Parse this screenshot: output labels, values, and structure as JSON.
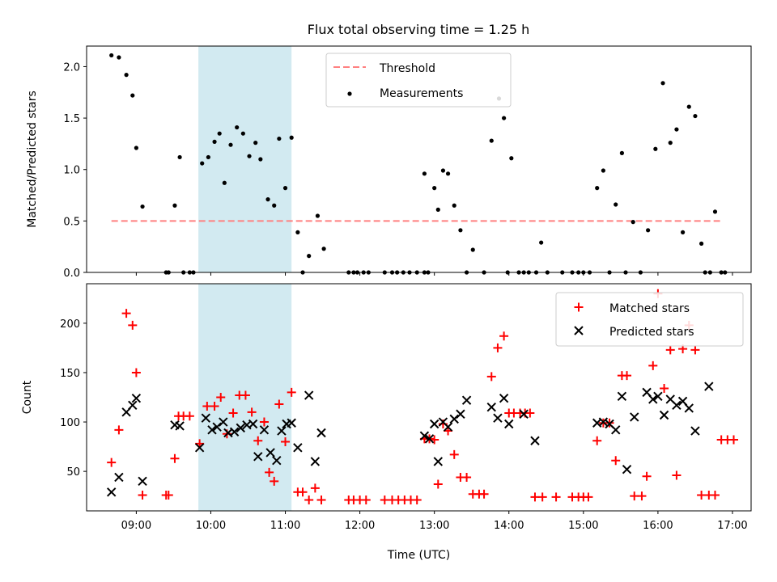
{
  "colors": {
    "threshold": "#ff8080",
    "measurements": "#000000",
    "matched": "#ff0000",
    "predicted": "#000000",
    "shade": "#add8e6"
  },
  "chart_data": [
    {
      "type": "scatter",
      "title": "Flux total observing time = 1.25 h",
      "xlabel": "",
      "ylabel": "Matched/Predicted stars",
      "xlim": [
        "08:20",
        "17:15"
      ],
      "ylim": [
        0,
        2.2
      ],
      "yticks": [
        "0.0",
        "0.5",
        "1.0",
        "1.5",
        "2.0"
      ],
      "shaded_x": [
        "09:50",
        "11:05"
      ],
      "legend": {
        "position": "top-center",
        "entries": [
          "Threshold",
          "Measurements"
        ]
      },
      "series": [
        {
          "name": "Threshold",
          "style": "dashed-line",
          "x": [
            "08:40",
            "16:50"
          ],
          "y": [
            0.5,
            0.5
          ]
        },
        {
          "name": "Measurements",
          "style": "dot",
          "points": [
            [
              "08:40",
              2.11
            ],
            [
              "08:46",
              2.09
            ],
            [
              "08:52",
              1.92
            ],
            [
              "08:57",
              1.72
            ],
            [
              "09:00",
              1.21
            ],
            [
              "09:05",
              0.64
            ],
            [
              "09:24",
              0.0
            ],
            [
              "09:26",
              0.0
            ],
            [
              "09:31",
              0.65
            ],
            [
              "09:35",
              1.12
            ],
            [
              "09:38",
              0.0
            ],
            [
              "09:43",
              0.0
            ],
            [
              "09:46",
              0.0
            ],
            [
              "09:53",
              1.06
            ],
            [
              "09:58",
              1.12
            ],
            [
              "10:03",
              1.27
            ],
            [
              "10:07",
              1.35
            ],
            [
              "10:11",
              0.87
            ],
            [
              "10:16",
              1.24
            ],
            [
              "10:21",
              1.41
            ],
            [
              "10:26",
              1.35
            ],
            [
              "10:31",
              1.13
            ],
            [
              "10:36",
              1.26
            ],
            [
              "10:40",
              1.1
            ],
            [
              "10:46",
              0.71
            ],
            [
              "10:51",
              0.65
            ],
            [
              "10:55",
              1.3
            ],
            [
              "11:00",
              0.82
            ],
            [
              "11:05",
              1.31
            ],
            [
              "11:10",
              0.39
            ],
            [
              "11:14",
              0.0
            ],
            [
              "11:19",
              0.16
            ],
            [
              "11:26",
              0.55
            ],
            [
              "11:31",
              0.23
            ],
            [
              "11:51",
              0.0
            ],
            [
              "11:55",
              0.0
            ],
            [
              "11:58",
              0.0
            ],
            [
              "12:03",
              0.0
            ],
            [
              "12:07",
              0.0
            ],
            [
              "12:20",
              0.0
            ],
            [
              "12:26",
              0.0
            ],
            [
              "12:30",
              0.0
            ],
            [
              "12:35",
              0.0
            ],
            [
              "12:40",
              0.0
            ],
            [
              "12:46",
              0.0
            ],
            [
              "12:52",
              0.0
            ],
            [
              "12:52",
              0.96
            ],
            [
              "12:55",
              0.0
            ],
            [
              "13:00",
              0.82
            ],
            [
              "13:03",
              0.61
            ],
            [
              "13:07",
              0.99
            ],
            [
              "13:11",
              0.96
            ],
            [
              "13:16",
              0.65
            ],
            [
              "13:21",
              0.41
            ],
            [
              "13:26",
              0.0
            ],
            [
              "13:31",
              0.22
            ],
            [
              "13:40",
              0.0
            ],
            [
              "13:46",
              1.28
            ],
            [
              "13:52",
              1.69
            ],
            [
              "13:56",
              1.5
            ],
            [
              "13:59",
              0.0
            ],
            [
              "14:02",
              1.11
            ],
            [
              "14:08",
              0.0
            ],
            [
              "14:12",
              0.0
            ],
            [
              "14:16",
              0.0
            ],
            [
              "14:22",
              0.0
            ],
            [
              "14:26",
              0.29
            ],
            [
              "14:31",
              0.0
            ],
            [
              "14:43",
              0.0
            ],
            [
              "14:51",
              0.0
            ],
            [
              "14:56",
              0.0
            ],
            [
              "15:00",
              0.0
            ],
            [
              "15:05",
              0.0
            ],
            [
              "15:11",
              0.82
            ],
            [
              "15:16",
              0.99
            ],
            [
              "15:21",
              0.0
            ],
            [
              "15:26",
              0.66
            ],
            [
              "15:31",
              1.16
            ],
            [
              "15:34",
              0.0
            ],
            [
              "15:40",
              0.49
            ],
            [
              "15:46",
              0.0
            ],
            [
              "15:52",
              0.41
            ],
            [
              "15:58",
              1.2
            ],
            [
              "16:04",
              1.84
            ],
            [
              "16:10",
              1.26
            ],
            [
              "16:15",
              1.39
            ],
            [
              "16:20",
              0.39
            ],
            [
              "16:25",
              1.61
            ],
            [
              "16:30",
              1.52
            ],
            [
              "16:35",
              0.28
            ],
            [
              "16:38",
              0.0
            ],
            [
              "16:42",
              0.0
            ],
            [
              "16:46",
              0.59
            ],
            [
              "16:51",
              0.0
            ],
            [
              "16:54",
              0.0
            ]
          ]
        }
      ]
    },
    {
      "type": "scatter",
      "title": "",
      "xlabel": "Time (UTC)",
      "ylabel": "Count",
      "xlim": [
        "08:20",
        "17:15"
      ],
      "ylim": [
        10,
        240
      ],
      "yticks": [
        "50",
        "100",
        "150",
        "200"
      ],
      "xticks": [
        "09:00",
        "10:00",
        "11:00",
        "12:00",
        "13:00",
        "14:00",
        "15:00",
        "16:00",
        "17:00"
      ],
      "shaded_x": [
        "09:50",
        "11:05"
      ],
      "legend": {
        "position": "top-right",
        "entries": [
          "Matched stars",
          "Predicted stars"
        ]
      },
      "series": [
        {
          "name": "Matched stars",
          "marker": "plus",
          "points": [
            [
              "08:40",
              59
            ],
            [
              "08:46",
              92
            ],
            [
              "08:52",
              210
            ],
            [
              "08:57",
              198
            ],
            [
              "09:00",
              150
            ],
            [
              "09:05",
              26
            ],
            [
              "09:24",
              26
            ],
            [
              "09:26",
              26
            ],
            [
              "09:31",
              63
            ],
            [
              "09:34",
              106
            ],
            [
              "09:38",
              106
            ],
            [
              "09:43",
              106
            ],
            [
              "09:51",
              78
            ],
            [
              "09:57",
              116
            ],
            [
              "10:03",
              116
            ],
            [
              "10:08",
              125
            ],
            [
              "10:13",
              88
            ],
            [
              "10:18",
              109
            ],
            [
              "10:23",
              127
            ],
            [
              "10:28",
              127
            ],
            [
              "10:33",
              110
            ],
            [
              "10:38",
              81
            ],
            [
              "10:43",
              100
            ],
            [
              "10:47",
              49
            ],
            [
              "10:51",
              40
            ],
            [
              "10:55",
              118
            ],
            [
              "11:00",
              80
            ],
            [
              "11:05",
              130
            ],
            [
              "11:10",
              29
            ],
            [
              "11:14",
              29
            ],
            [
              "11:19",
              21
            ],
            [
              "11:24",
              33
            ],
            [
              "11:29",
              21
            ],
            [
              "11:51",
              21
            ],
            [
              "11:55",
              21
            ],
            [
              "12:00",
              21
            ],
            [
              "12:05",
              21
            ],
            [
              "12:20",
              21
            ],
            [
              "12:26",
              21
            ],
            [
              "12:31",
              21
            ],
            [
              "12:36",
              21
            ],
            [
              "12:41",
              21
            ],
            [
              "12:46",
              21
            ],
            [
              "12:52",
              83
            ],
            [
              "12:56",
              83
            ],
            [
              "13:00",
              82
            ],
            [
              "13:03",
              37
            ],
            [
              "13:07",
              98
            ],
            [
              "13:11",
              91
            ],
            [
              "13:16",
              67
            ],
            [
              "13:21",
              44
            ],
            [
              "13:26",
              44
            ],
            [
              "13:31",
              27
            ],
            [
              "13:36",
              27
            ],
            [
              "13:40",
              27
            ],
            [
              "13:46",
              146
            ],
            [
              "13:51",
              175
            ],
            [
              "13:56",
              187
            ],
            [
              "14:00",
              109
            ],
            [
              "14:04",
              109
            ],
            [
              "14:09",
              109
            ],
            [
              "14:13",
              109
            ],
            [
              "14:17",
              109
            ],
            [
              "14:21",
              24
            ],
            [
              "14:27",
              24
            ],
            [
              "14:38",
              24
            ],
            [
              "14:51",
              24
            ],
            [
              "14:56",
              24
            ],
            [
              "15:00",
              24
            ],
            [
              "15:04",
              24
            ],
            [
              "15:11",
              81
            ],
            [
              "15:16",
              99
            ],
            [
              "15:21",
              99
            ],
            [
              "15:26",
              61
            ],
            [
              "15:31",
              147
            ],
            [
              "15:35",
              147
            ],
            [
              "15:41",
              25
            ],
            [
              "15:47",
              25
            ],
            [
              "15:51",
              45
            ],
            [
              "15:56",
              157
            ],
            [
              "16:00",
              230
            ],
            [
              "16:05",
              134
            ],
            [
              "16:10",
              173
            ],
            [
              "16:15",
              46
            ],
            [
              "16:20",
              174
            ],
            [
              "16:25",
              198
            ],
            [
              "16:30",
              173
            ],
            [
              "16:35",
              26
            ],
            [
              "16:41",
              26
            ],
            [
              "16:46",
              26
            ],
            [
              "16:51",
              82
            ],
            [
              "16:56",
              82
            ],
            [
              "17:01",
              82
            ]
          ]
        },
        {
          "name": "Predicted stars",
          "marker": "x",
          "points": [
            [
              "08:40",
              29
            ],
            [
              "08:46",
              44
            ],
            [
              "08:52",
              110
            ],
            [
              "08:57",
              117
            ],
            [
              "09:00",
              124
            ],
            [
              "09:05",
              40
            ],
            [
              "09:31",
              97
            ],
            [
              "09:35",
              96
            ],
            [
              "09:51",
              74
            ],
            [
              "09:56",
              104
            ],
            [
              "10:01",
              92
            ],
            [
              "10:05",
              95
            ],
            [
              "10:10",
              100
            ],
            [
              "10:14",
              89
            ],
            [
              "10:19",
              90
            ],
            [
              "10:24",
              94
            ],
            [
              "10:29",
              97
            ],
            [
              "10:34",
              98
            ],
            [
              "10:38",
              65
            ],
            [
              "10:43",
              92
            ],
            [
              "10:48",
              69
            ],
            [
              "10:53",
              61
            ],
            [
              "10:57",
              91
            ],
            [
              "11:01",
              98
            ],
            [
              "11:05",
              99
            ],
            [
              "11:10",
              74
            ],
            [
              "11:19",
              127
            ],
            [
              "11:24",
              60
            ],
            [
              "11:29",
              89
            ],
            [
              "12:52",
              86
            ],
            [
              "12:56",
              83
            ],
            [
              "13:00",
              98
            ],
            [
              "13:03",
              60
            ],
            [
              "13:07",
              100
            ],
            [
              "13:11",
              95
            ],
            [
              "13:16",
              103
            ],
            [
              "13:21",
              108
            ],
            [
              "13:26",
              122
            ],
            [
              "13:46",
              115
            ],
            [
              "13:51",
              104
            ],
            [
              "13:56",
              124
            ],
            [
              "14:00",
              98
            ],
            [
              "14:12",
              108
            ],
            [
              "14:21",
              81
            ],
            [
              "15:11",
              99
            ],
            [
              "15:16",
              100
            ],
            [
              "15:21",
              98
            ],
            [
              "15:26",
              92
            ],
            [
              "15:31",
              126
            ],
            [
              "15:35",
              52
            ],
            [
              "15:41",
              105
            ],
            [
              "15:51",
              130
            ],
            [
              "15:56",
              123
            ],
            [
              "16:00",
              126
            ],
            [
              "16:05",
              107
            ],
            [
              "16:10",
              123
            ],
            [
              "16:15",
              117
            ],
            [
              "16:20",
              121
            ],
            [
              "16:25",
              114
            ],
            [
              "16:30",
              91
            ],
            [
              "16:41",
              136
            ]
          ]
        }
      ]
    }
  ]
}
